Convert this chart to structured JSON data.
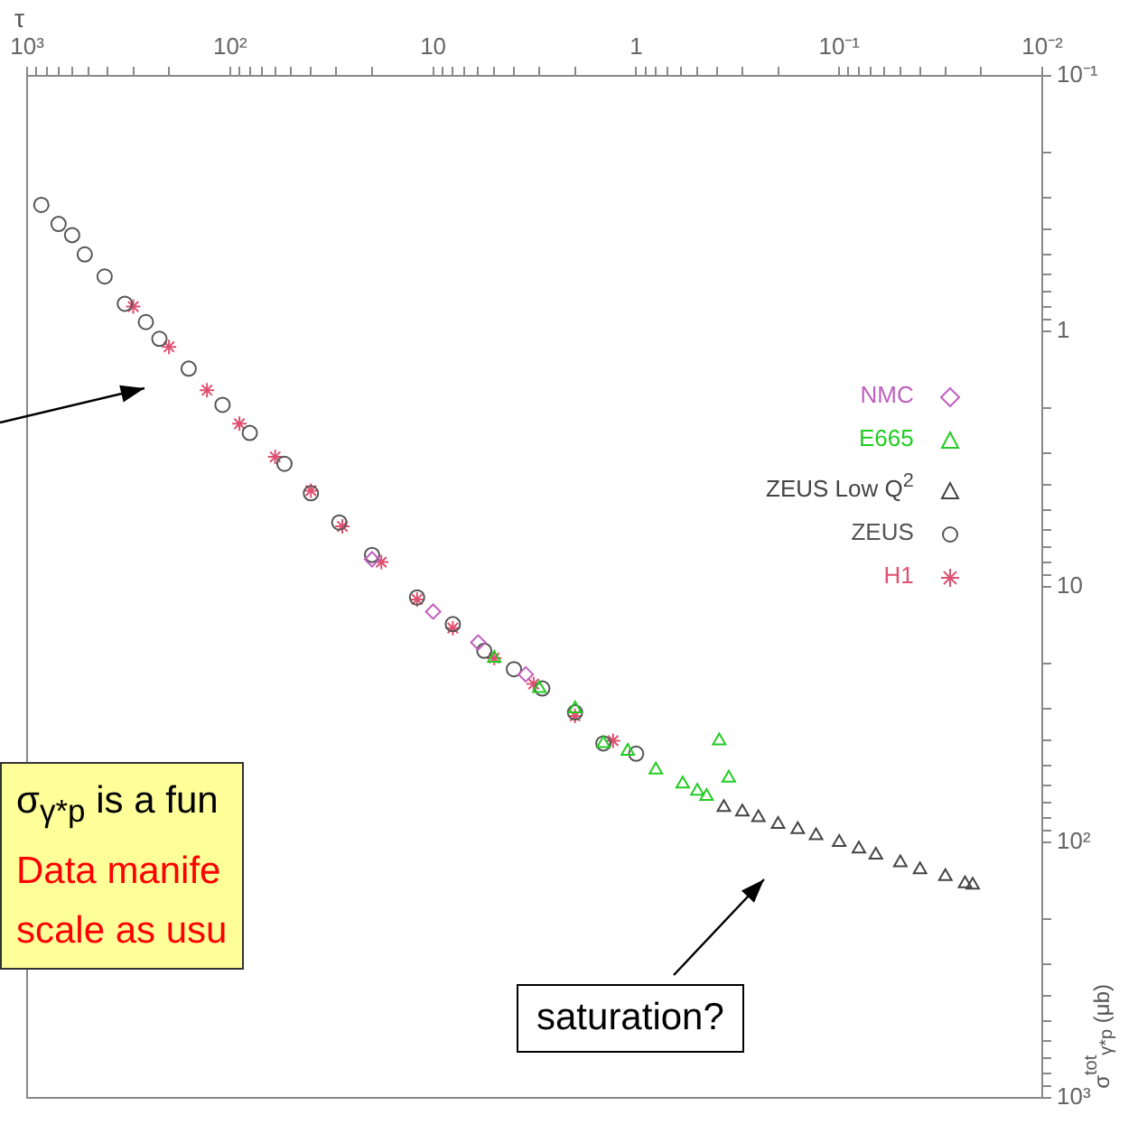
{
  "chart_data": {
    "type": "scatter",
    "xlabel": "τ",
    "ylabel": "σ$^{tot}$$_{γ*p}$ (μb)",
    "log": "xy",
    "legend": "right",
    "xlim": [
      1000,
      0.01
    ],
    "ylim": [
      1000,
      0.1
    ],
    "xticks": [
      {
        "value": 0.01,
        "label": "10⁻²"
      },
      {
        "value": 0.02,
        "label": null
      },
      {
        "value": 0.03,
        "label": null
      },
      {
        "value": 0.04,
        "label": null
      },
      {
        "value": 0.05,
        "label": null
      },
      {
        "value": 0.06,
        "label": null
      },
      {
        "value": 0.07,
        "label": null
      },
      {
        "value": 0.08,
        "label": null
      },
      {
        "value": 0.09,
        "label": null
      },
      {
        "value": 0.1,
        "label": "10⁻¹"
      },
      {
        "value": 0.2,
        "label": null
      },
      {
        "value": 0.3,
        "label": null
      },
      {
        "value": 0.4,
        "label": null
      },
      {
        "value": 0.5,
        "label": null
      },
      {
        "value": 0.6,
        "label": null
      },
      {
        "value": 0.7,
        "label": null
      },
      {
        "value": 0.8,
        "label": null
      },
      {
        "value": 0.9,
        "label": null
      },
      1,
      {
        "value": 2,
        "label": null
      },
      {
        "value": 3,
        "label": null
      },
      {
        "value": 4,
        "label": null
      },
      {
        "value": 5,
        "label": null
      },
      {
        "value": 6,
        "label": null
      },
      {
        "value": 7,
        "label": null
      },
      {
        "value": 8,
        "label": null
      },
      {
        "value": 9,
        "label": null
      },
      10,
      {
        "value": 20,
        "label": null
      },
      {
        "value": 30,
        "label": null
      },
      {
        "value": 40,
        "label": null
      },
      {
        "value": 50,
        "label": null
      },
      {
        "value": 60,
        "label": null
      },
      {
        "value": 70,
        "label": null
      },
      {
        "value": 80,
        "label": null
      },
      {
        "value": 90,
        "label": null
      },
      {
        "value": 100,
        "label": "10²"
      },
      {
        "value": 200,
        "label": null
      },
      {
        "value": 300,
        "label": null
      },
      {
        "value": 400,
        "label": null
      },
      {
        "value": 500,
        "label": null
      },
      {
        "value": 600,
        "label": null
      },
      {
        "value": 700,
        "label": null
      },
      {
        "value": 800,
        "label": null
      },
      {
        "value": 900,
        "label": null
      },
      {
        "value": 1000,
        "label": "10³"
      }
    ],
    "yticks": [
      {
        "value": 0.1,
        "label": "10⁻¹"
      },
      {
        "value": 0.2,
        "label": null
      },
      {
        "value": 0.3,
        "label": null
      },
      {
        "value": 0.4,
        "label": null
      },
      {
        "value": 0.5,
        "label": null
      },
      {
        "value": 0.6,
        "label": null
      },
      {
        "value": 0.7,
        "label": null
      },
      {
        "value": 0.8,
        "label": null
      },
      {
        "value": 0.9,
        "label": null
      },
      1,
      {
        "value": 2,
        "label": null
      },
      {
        "value": 3,
        "label": null
      },
      {
        "value": 4,
        "label": null
      },
      {
        "value": 5,
        "label": null
      },
      {
        "value": 6,
        "label": null
      },
      {
        "value": 7,
        "label": null
      },
      {
        "value": 8,
        "label": null
      },
      {
        "value": 9,
        "label": null
      },
      10,
      {
        "value": 20,
        "label": null
      },
      {
        "value": 30,
        "label": null
      },
      {
        "value": 40,
        "label": null
      },
      {
        "value": 50,
        "label": null
      },
      {
        "value": 60,
        "label": null
      },
      {
        "value": 70,
        "label": null
      },
      {
        "value": 80,
        "label": null
      },
      {
        "value": 90,
        "label": null
      },
      {
        "value": 100,
        "label": "10²"
      },
      {
        "value": 200,
        "label": null
      },
      {
        "value": 300,
        "label": null
      },
      {
        "value": 400,
        "label": null
      },
      {
        "value": 500,
        "label": null
      },
      {
        "value": 600,
        "label": null
      },
      {
        "value": 700,
        "label": null
      },
      {
        "value": 800,
        "label": null
      },
      {
        "value": 900,
        "label": null
      },
      {
        "value": 1000,
        "label": "10³"
      }
    ],
    "series": [
      {
        "name": "NMC",
        "color": "#c060c0",
        "marker": "diamond",
        "x": [
          20,
          10,
          6,
          3.5
        ],
        "values": [
          7.8,
          12.5,
          16.5,
          22
        ]
      },
      {
        "name": "E665",
        "color": "#22cc22",
        "marker": "triangle",
        "x": [
          5,
          3,
          2,
          1.45,
          1.1,
          0.8,
          0.59,
          0.5,
          0.45,
          0.39,
          0.35
        ],
        "values": [
          19,
          25,
          30,
          41,
          44,
          52,
          59,
          63,
          66,
          40,
          56
        ]
      },
      {
        "name": "ZEUS Low Q$^{2}$",
        "color": "#444444",
        "marker": "triangle",
        "x": [
          0.37,
          0.3,
          0.25,
          0.2,
          0.16,
          0.13,
          0.1,
          0.08,
          0.066,
          0.05,
          0.04,
          0.03,
          0.024,
          0.022
        ],
        "values": [
          73,
          76,
          80,
          85,
          89,
          94,
          100,
          106,
          112,
          120,
          128,
          136,
          145,
          147
        ]
      },
      {
        "name": "ZEUS",
        "color": "#555555",
        "marker": "circle",
        "x": [
          851,
          700,
          600,
          520,
          415,
          330,
          260,
          223,
          160,
          109,
          80,
          54,
          40,
          29,
          20,
          12,
          8,
          5.6,
          4,
          2.9,
          2,
          1.45,
          1
        ],
        "values": [
          0.32,
          0.38,
          0.42,
          0.5,
          0.61,
          0.78,
          0.92,
          1.07,
          1.4,
          1.94,
          2.5,
          3.3,
          4.3,
          5.6,
          7.5,
          11,
          14,
          17.8,
          21,
          25,
          31,
          41,
          45
        ]
      },
      {
        "name": "H1",
        "color": "#e05070",
        "marker": "cross",
        "x": [
          300,
          200,
          130,
          90,
          60,
          40,
          28,
          18,
          12,
          8,
          5,
          3.2,
          2,
          1.3
        ],
        "values": [
          0.8,
          1.15,
          1.7,
          2.3,
          3.1,
          4.2,
          5.8,
          8,
          11.2,
          14.5,
          19,
          24,
          32,
          40
        ]
      }
    ],
    "annotations": [
      "saturation?",
      "σ$_{γ*p}$ is a fun\nData manife\nscale as usu"
    ]
  }
}
